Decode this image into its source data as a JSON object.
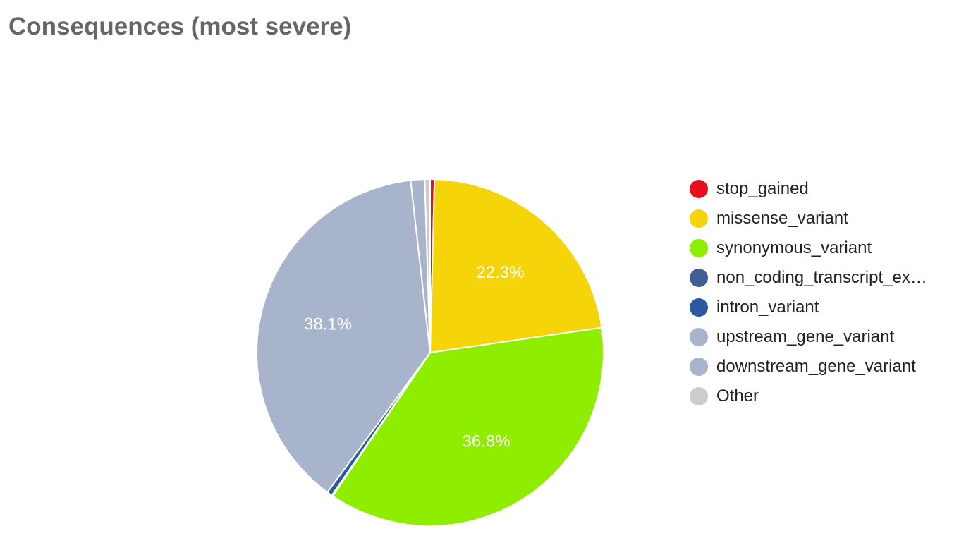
{
  "chart_data": {
    "type": "pie",
    "title": "Consequences (most severe)",
    "legend_position": "right",
    "slices": [
      {
        "name": "stop_gained",
        "value": 0.4,
        "color": "#e8101d",
        "label": ""
      },
      {
        "name": "missense_variant",
        "value": 22.3,
        "color": "#f5d50a",
        "label": "22.3%"
      },
      {
        "name": "synonymous_variant",
        "value": 36.8,
        "color": "#8fed00",
        "label": "36.8%"
      },
      {
        "name": "non_coding_transcript_exon_variant",
        "value": 0.1,
        "color": "#3f5e96",
        "label": ""
      },
      {
        "name": "intron_variant",
        "value": 0.5,
        "color": "#2b5aa3",
        "label": ""
      },
      {
        "name": "upstream_gene_variant",
        "value": 38.1,
        "color": "#a7b4cc",
        "label": "38.1%"
      },
      {
        "name": "downstream_gene_variant",
        "value": 1.3,
        "color": "#a7b4cc",
        "label": ""
      },
      {
        "name": "Other",
        "value": 0.5,
        "color": "#cccccc",
        "label": ""
      }
    ]
  },
  "legend": {
    "items": [
      {
        "label": "stop_gained",
        "color": "#e8101d"
      },
      {
        "label": "missense_variant",
        "color": "#f5d50a"
      },
      {
        "label": "synonymous_variant",
        "color": "#8fed00"
      },
      {
        "label": "non_coding_transcript_ex…",
        "color": "#3f5e96"
      },
      {
        "label": "intron_variant",
        "color": "#2b5aa3"
      },
      {
        "label": "upstream_gene_variant",
        "color": "#a7b4cc"
      },
      {
        "label": "downstream_gene_variant",
        "color": "#a7b4cc"
      },
      {
        "label": "Other",
        "color": "#cccccc"
      }
    ]
  }
}
